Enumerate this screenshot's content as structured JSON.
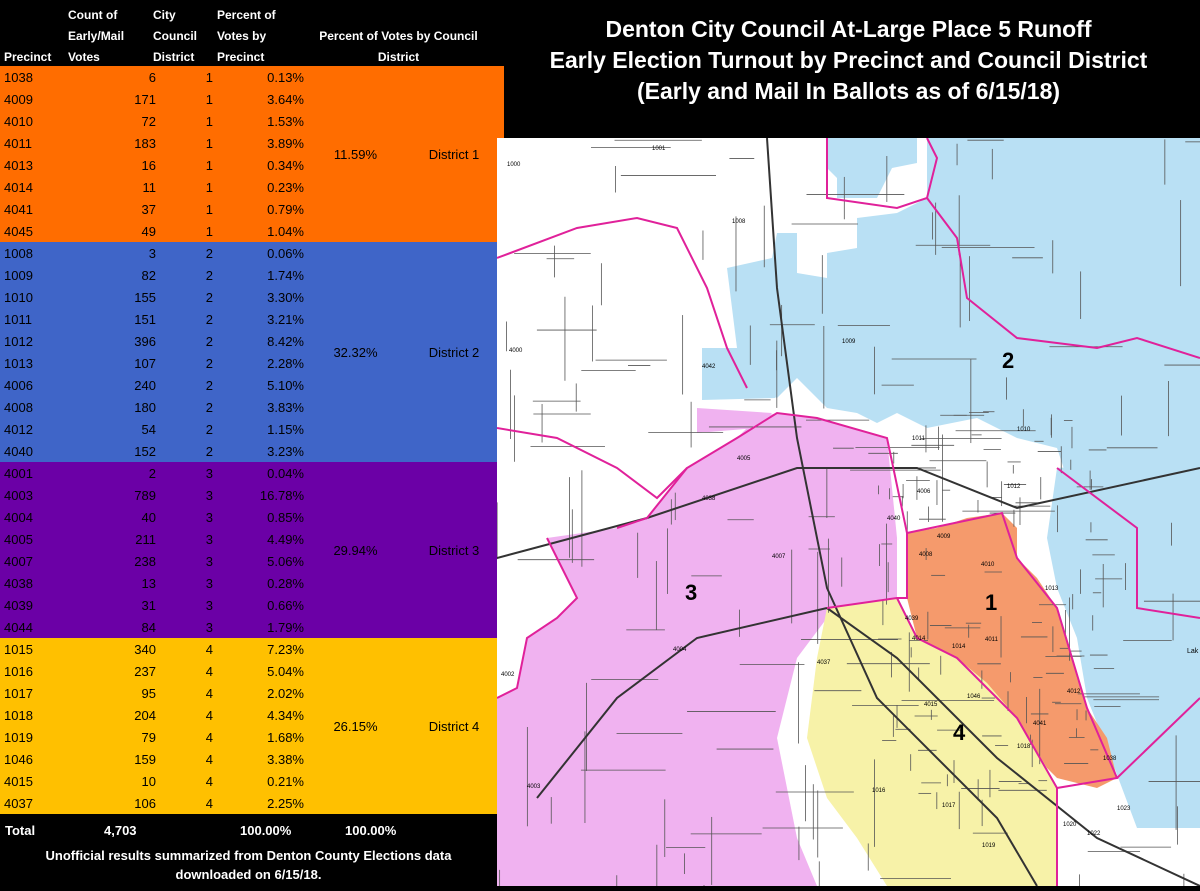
{
  "header": {
    "precinct": "Precinct",
    "count_line1": "Count of",
    "count_line2": "Early/Mail",
    "count_line3": "Votes",
    "city_line1": "City",
    "city_line2": "Council",
    "city_line3": "District",
    "pct_line1": "Percent of",
    "pct_line2": "Votes by",
    "pct_line3": "Precinct",
    "district_pct_line1": "Percent of Votes by Council",
    "district_pct_line2": "District"
  },
  "colors": {
    "district_1": "#FF6D00",
    "district_2": "#3F65C8",
    "district_3": "#6B00A6",
    "district_4": "#FFC000",
    "map_district_1": "#F59A6C",
    "map_district_2": "#B9E0F4",
    "map_district_3": "#F0B2F0",
    "map_district_4": "#F7F2A8",
    "boundary": "#E0219A"
  },
  "districts": [
    {
      "pct": "11.59%",
      "label": "District 1",
      "rows": [
        {
          "precinct": "1038",
          "votes": "6",
          "district": "1",
          "pct": "0.13%"
        },
        {
          "precinct": "4009",
          "votes": "171",
          "district": "1",
          "pct": "3.64%"
        },
        {
          "precinct": "4010",
          "votes": "72",
          "district": "1",
          "pct": "1.53%"
        },
        {
          "precinct": "4011",
          "votes": "183",
          "district": "1",
          "pct": "3.89%"
        },
        {
          "precinct": "4013",
          "votes": "16",
          "district": "1",
          "pct": "0.34%"
        },
        {
          "precinct": "4014",
          "votes": "11",
          "district": "1",
          "pct": "0.23%"
        },
        {
          "precinct": "4041",
          "votes": "37",
          "district": "1",
          "pct": "0.79%"
        },
        {
          "precinct": "4045",
          "votes": "49",
          "district": "1",
          "pct": "1.04%"
        }
      ]
    },
    {
      "pct": "32.32%",
      "label": "District 2",
      "rows": [
        {
          "precinct": "1008",
          "votes": "3",
          "district": "2",
          "pct": "0.06%"
        },
        {
          "precinct": "1009",
          "votes": "82",
          "district": "2",
          "pct": "1.74%"
        },
        {
          "precinct": "1010",
          "votes": "155",
          "district": "2",
          "pct": "3.30%"
        },
        {
          "precinct": "1011",
          "votes": "151",
          "district": "2",
          "pct": "3.21%"
        },
        {
          "precinct": "1012",
          "votes": "396",
          "district": "2",
          "pct": "8.42%"
        },
        {
          "precinct": "1013",
          "votes": "107",
          "district": "2",
          "pct": "2.28%"
        },
        {
          "precinct": "4006",
          "votes": "240",
          "district": "2",
          "pct": "5.10%"
        },
        {
          "precinct": "4008",
          "votes": "180",
          "district": "2",
          "pct": "3.83%"
        },
        {
          "precinct": "4012",
          "votes": "54",
          "district": "2",
          "pct": "1.15%"
        },
        {
          "precinct": "4040",
          "votes": "152",
          "district": "2",
          "pct": "3.23%"
        }
      ]
    },
    {
      "pct": "29.94%",
      "label": "District 3",
      "rows": [
        {
          "precinct": "4001",
          "votes": "2",
          "district": "3",
          "pct": "0.04%"
        },
        {
          "precinct": "4003",
          "votes": "789",
          "district": "3",
          "pct": "16.78%"
        },
        {
          "precinct": "4004",
          "votes": "40",
          "district": "3",
          "pct": "0.85%"
        },
        {
          "precinct": "4005",
          "votes": "211",
          "district": "3",
          "pct": "4.49%"
        },
        {
          "precinct": "4007",
          "votes": "238",
          "district": "3",
          "pct": "5.06%"
        },
        {
          "precinct": "4038",
          "votes": "13",
          "district": "3",
          "pct": "0.28%"
        },
        {
          "precinct": "4039",
          "votes": "31",
          "district": "3",
          "pct": "0.66%"
        },
        {
          "precinct": "4044",
          "votes": "84",
          "district": "3",
          "pct": "1.79%"
        }
      ]
    },
    {
      "pct": "26.15%",
      "label": "District 4",
      "rows": [
        {
          "precinct": "1015",
          "votes": "340",
          "district": "4",
          "pct": "7.23%"
        },
        {
          "precinct": "1016",
          "votes": "237",
          "district": "4",
          "pct": "5.04%"
        },
        {
          "precinct": "1017",
          "votes": "95",
          "district": "4",
          "pct": "2.02%"
        },
        {
          "precinct": "1018",
          "votes": "204",
          "district": "4",
          "pct": "4.34%"
        },
        {
          "precinct": "1019",
          "votes": "79",
          "district": "4",
          "pct": "1.68%"
        },
        {
          "precinct": "1046",
          "votes": "159",
          "district": "4",
          "pct": "3.38%"
        },
        {
          "precinct": "4015",
          "votes": "10",
          "district": "4",
          "pct": "0.21%"
        },
        {
          "precinct": "4037",
          "votes": "106",
          "district": "4",
          "pct": "2.25%"
        }
      ]
    }
  ],
  "total": {
    "label": "Total",
    "votes": "4,703",
    "pct": "100.00%",
    "district_pct": "100.00%"
  },
  "footnote_line1": "Unofficial results summarized from Denton County Elections data",
  "footnote_line2": "downloaded on 6/15/18.",
  "title_line1": "Denton City Council At-Large Place 5 Runoff",
  "title_line2": "Early Election Turnout by Precinct and Council District",
  "title_line3": "(Early and Mail In Ballots as of 6/15/18)",
  "map": {
    "district_numbers": [
      "1",
      "2",
      "3",
      "4"
    ],
    "precinct_labels": [
      "1001",
      "1000",
      "1008",
      "1009",
      "1010",
      "4000",
      "4042",
      "1011",
      "4006",
      "1012",
      "4005",
      "4038",
      "4040",
      "4008",
      "4009",
      "4010",
      "4007",
      "1013",
      "4039",
      "4014",
      "4011",
      "4004",
      "4037",
      "1014",
      "4002",
      "4015",
      "4012",
      "1046",
      "4041",
      "1038",
      "1018",
      "1016",
      "1017",
      "4003",
      "1019",
      "1020",
      "1022",
      "1023"
    ],
    "lake_label": "Lak"
  }
}
